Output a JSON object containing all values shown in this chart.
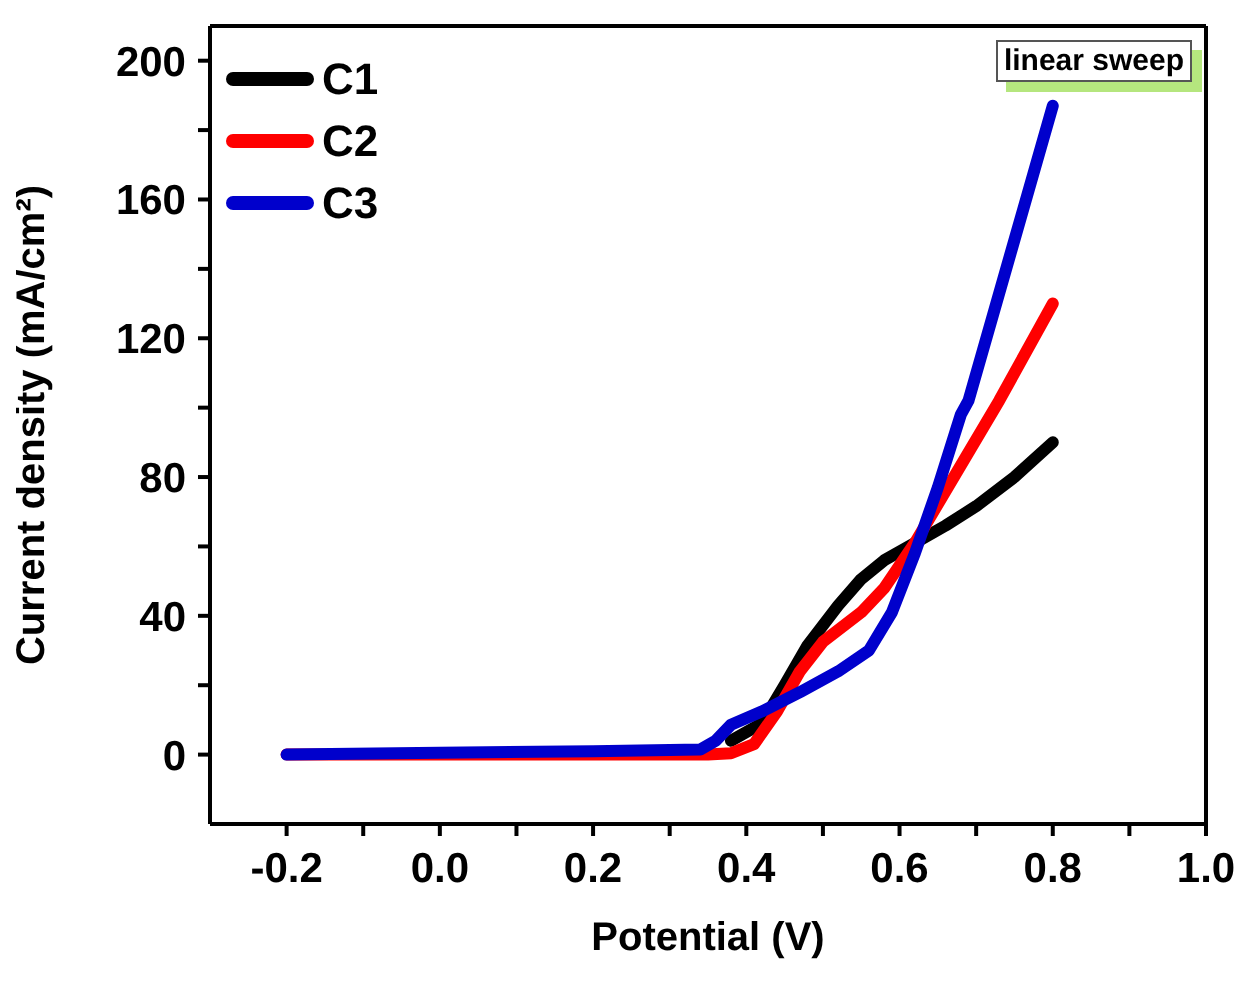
{
  "chart_data": {
    "type": "line",
    "xlabel": "Potential (V)",
    "ylabel": "Current density (mA/cm²)",
    "xlim": [
      -0.3,
      1.0
    ],
    "ylim": [
      -20,
      210
    ],
    "xticks": [
      -0.2,
      {
        "value": -0.1,
        "label": null
      },
      {
        "value": 0,
        "label": "0.0"
      },
      {
        "value": 0.1,
        "label": null
      },
      0.2,
      {
        "value": 0.3,
        "label": null
      },
      0.4,
      {
        "value": 0.5,
        "label": null
      },
      0.6,
      {
        "value": 0.7,
        "label": null
      },
      0.8,
      {
        "value": 0.9,
        "label": null
      },
      {
        "value": 1,
        "label": "1.0"
      }
    ],
    "yticks": [
      0,
      {
        "value": 20,
        "label": null
      },
      40,
      {
        "value": 60,
        "label": null
      },
      80,
      {
        "value": 100,
        "label": null
      },
      120,
      {
        "value": 140,
        "label": null
      },
      160,
      {
        "value": 180,
        "label": null
      },
      200
    ],
    "legend": "top left",
    "marker": "none",
    "line_style": "solid",
    "annotations": [
      "linear sweep"
    ],
    "series": [
      {
        "name": "C1",
        "color": "#000000",
        "x": [
          0.38,
          0.42,
          0.45,
          0.48,
          0.52,
          0.55,
          0.58,
          0.62,
          0.66,
          0.7,
          0.75,
          0.8
        ],
        "values": [
          4,
          9,
          20,
          31.5,
          43,
          50.6,
          56,
          61,
          66,
          71.6,
          80,
          90
        ]
      },
      {
        "name": "C2",
        "color": "#ff0000",
        "x": [
          -0.2,
          0.0,
          0.2,
          0.35,
          0.38,
          0.41,
          0.44,
          0.47,
          0.5,
          0.55,
          0.58,
          0.62,
          0.73,
          0.8
        ],
        "values": [
          0,
          0,
          0,
          0,
          0.4,
          3,
          12.4,
          24,
          32.5,
          41,
          48,
          61,
          102,
          130
        ]
      },
      {
        "name": "C3",
        "color": "#0000cc",
        "x": [
          -0.2,
          0.0,
          0.2,
          0.34,
          0.36,
          0.38,
          0.42,
          0.47,
          0.52,
          0.56,
          0.59,
          0.62,
          0.65,
          0.68,
          0.69,
          0.8
        ],
        "values": [
          0,
          0.5,
          1,
          1.5,
          4,
          8.6,
          12.4,
          18,
          24,
          30,
          41,
          58,
          77,
          98,
          102,
          187
        ]
      }
    ]
  }
}
